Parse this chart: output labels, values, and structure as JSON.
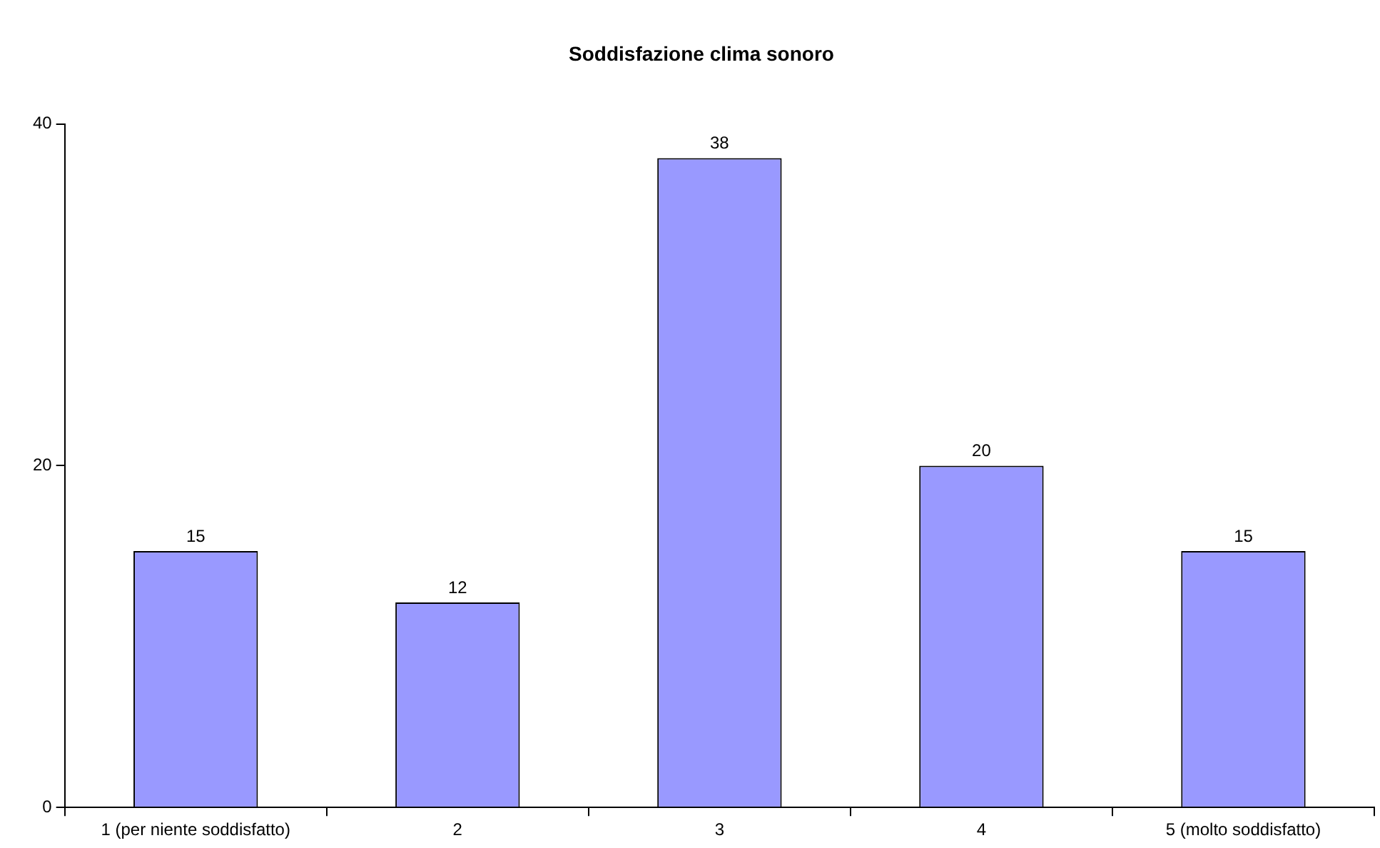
{
  "chart_data": {
    "type": "bar",
    "title": "Soddisfazione clima sonoro",
    "categories": [
      "1 (per niente soddisfatto)",
      "2",
      "3",
      "4",
      "5 (molto soddisfatto)"
    ],
    "values": [
      15,
      12,
      38,
      20,
      15
    ],
    "color": "#9999ff",
    "ylim": [
      0,
      40
    ],
    "yticks": [
      0,
      20,
      40
    ],
    "grid": false,
    "legend": false,
    "data_labels": true
  }
}
